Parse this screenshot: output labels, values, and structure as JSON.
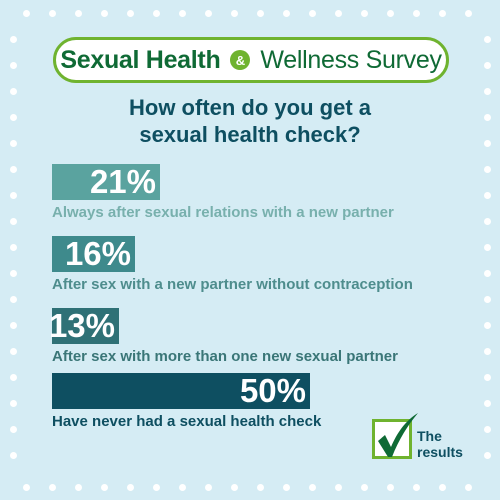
{
  "header": {
    "title_part1": "Sexual Health",
    "title_amp": "&",
    "title_part2": "Wellness Survey"
  },
  "question": {
    "line1": "How often do you get a",
    "line2": "sexual health check?"
  },
  "chart_data": {
    "type": "bar",
    "title": "How often do you get a sexual health check?",
    "categories": [
      "Always after sexual relations with a new partner",
      "After sex with a new partner without contraception",
      "After sex with more than one new sexual partner",
      "Have never had a sexual health check"
    ],
    "values": [
      21,
      16,
      13,
      50
    ],
    "value_labels": [
      "21%",
      "16%",
      "13%",
      "50%"
    ],
    "unit": "%",
    "colors": [
      "#5aa39f",
      "#3e8a8c",
      "#2f7176",
      "#0e4f61"
    ],
    "label_colors": [
      "#78b0ad",
      "#4e8d8d",
      "#3a7677",
      "#0e4f61"
    ]
  },
  "badge": {
    "icon": "checkmark-icon",
    "line1": "The",
    "line2": "results"
  },
  "colors": {
    "background": "#d5ecf4",
    "brand_green": "#6fb32f",
    "title_green": "#0f6a35",
    "dark_teal": "#0e4f61"
  }
}
